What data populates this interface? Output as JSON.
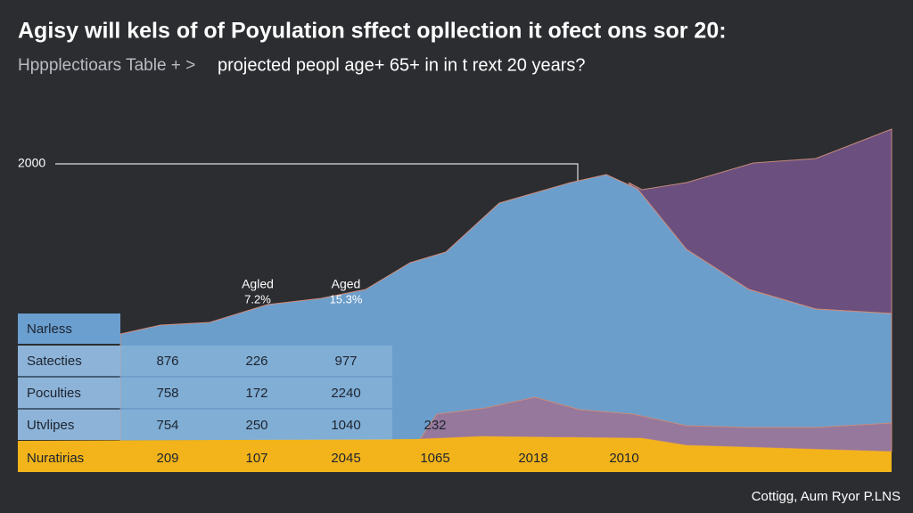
{
  "header": {
    "title": "Agisy will kels of of Poyulation sffect opllection it ofect ons sor 20:",
    "breadcrumb": "Hppplectioars Table + >",
    "subtitle": "projected peopl age+ 65+ in in t rext 20 years?"
  },
  "axis_label": "2000",
  "annotations": [
    {
      "label": "Agled",
      "value": "7.2%"
    },
    {
      "label": "Aged",
      "value": "15.3%"
    }
  ],
  "table": {
    "header": "Narless",
    "rows": [
      [
        "Satecties",
        "876",
        "226",
        "977"
      ],
      [
        "Poculties",
        "758",
        "172",
        "2240"
      ],
      [
        "Utvlipes",
        "754",
        "250",
        "1040",
        "232"
      ],
      [
        "Nuratirias",
        "209",
        "107",
        "2045",
        "1065",
        "2018",
        "2010"
      ]
    ]
  },
  "footer": "Cottigg, Aum Ryor P.LNS"
}
